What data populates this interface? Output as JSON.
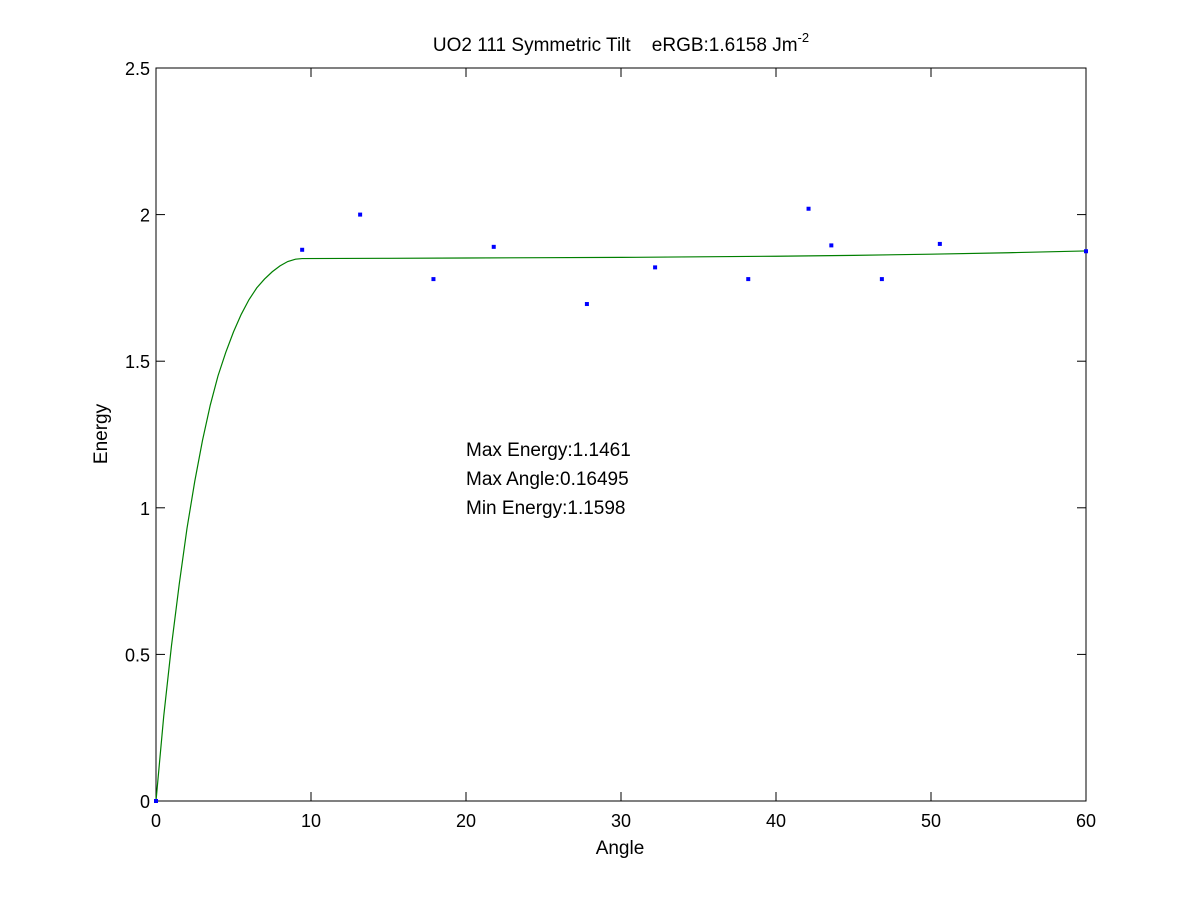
{
  "chart_data": {
    "type": "scatter",
    "title": "UO2 111 Symmetric Tilt    eRGB:1.6158 Jm",
    "title_superscript": "-2",
    "xlabel": "Angle",
    "ylabel": "Energy",
    "xlim": [
      0,
      60
    ],
    "ylim": [
      0,
      2.5
    ],
    "x_ticks": [
      0,
      10,
      20,
      30,
      40,
      50,
      60
    ],
    "y_ticks": [
      0,
      0.5,
      1,
      1.5,
      2,
      2.5
    ],
    "x_tick_labels": [
      "0",
      "10",
      "20",
      "30",
      "40",
      "50",
      "60"
    ],
    "y_tick_labels": [
      "0",
      "0.5",
      "1",
      "1.5",
      "2",
      "2.5"
    ],
    "grid": false,
    "series": [
      {
        "kind": "points",
        "color": "#0000ff",
        "x": [
          0,
          9.43,
          13.17,
          17.9,
          21.79,
          27.8,
          32.2,
          38.21,
          42.1,
          43.57,
          46.83,
          50.57,
          60
        ],
        "y": [
          0,
          1.88,
          2.0,
          1.78,
          1.89,
          1.695,
          1.82,
          1.78,
          2.02,
          1.895,
          1.78,
          1.9,
          1.875
        ]
      },
      {
        "kind": "line",
        "color": "#007f00",
        "x": [
          0,
          0.5,
          1,
          1.5,
          2,
          2.5,
          3,
          3.5,
          4,
          4.5,
          5,
          5.5,
          6,
          6.5,
          7,
          7.5,
          8,
          8.5,
          9,
          9.43,
          15,
          20,
          25,
          30,
          35,
          40,
          45,
          50,
          55,
          60
        ],
        "y": [
          0,
          0.29,
          0.53,
          0.74,
          0.93,
          1.09,
          1.23,
          1.35,
          1.45,
          1.53,
          1.6,
          1.66,
          1.71,
          1.75,
          1.78,
          1.805,
          1.825,
          1.84,
          1.848,
          1.85,
          1.851,
          1.852,
          1.853,
          1.854,
          1.856,
          1.858,
          1.861,
          1.865,
          1.87,
          1.876
        ]
      }
    ],
    "annotations": [
      "Max Energy:1.1461",
      "Max Angle:0.16495",
      "Min Energy:1.1598"
    ]
  }
}
